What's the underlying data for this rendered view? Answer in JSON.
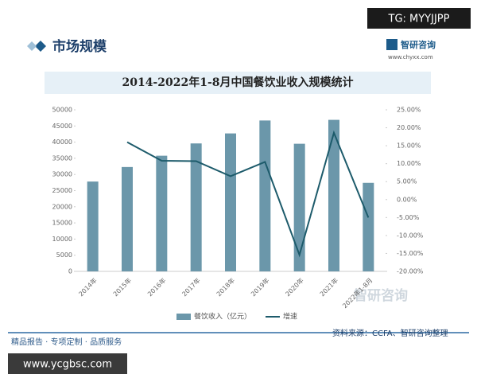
{
  "header": {
    "section": "市场规模",
    "brand": "智研咨询",
    "site": "www.chyxx.com",
    "tag": "TG: MYYJJPP"
  },
  "footer": {
    "slogan": "精品报告 · 专项定制 · 品质服务",
    "source": "资料来源：CCFA、智研咨询整理",
    "site": "www.ycgbsc.com",
    "watermark": "智研咨询"
  },
  "chart_data": {
    "type": "bar-line",
    "title": "2014-2022年1-8月中国餐饮业收入规模统计",
    "categories": [
      "2014年",
      "2015年",
      "2016年",
      "2017年",
      "2018年",
      "2019年",
      "2020年",
      "2021年",
      "2022年1-8月"
    ],
    "series": [
      {
        "name": "餐饮收入（亿元）",
        "type": "bar",
        "color": "#6b97aa",
        "values": [
          27800,
          32300,
          35800,
          39600,
          42700,
          46700,
          39500,
          46900,
          27400
        ]
      },
      {
        "name": "增速",
        "type": "line",
        "axis": "y2",
        "color": "#1d5b6b",
        "values": [
          null,
          16.0,
          10.8,
          10.7,
          6.5,
          10.5,
          -15.4,
          18.6,
          -5.0
        ]
      }
    ],
    "ylim": [
      0,
      50000
    ],
    "yticks": [
      0,
      5000,
      10000,
      15000,
      20000,
      25000,
      30000,
      35000,
      40000,
      45000,
      50000
    ],
    "y2lim": [
      -20,
      25
    ],
    "y2ticks": [
      {
        "value": -20,
        "label": "-20.00%"
      },
      {
        "value": -15,
        "label": "-15.00%"
      },
      {
        "value": -10,
        "label": "-10.00%"
      },
      {
        "value": -5,
        "label": "-5.00%"
      },
      {
        "value": 0,
        "label": "0.00%"
      },
      {
        "value": 5,
        "label": "5.00%"
      },
      {
        "value": 10,
        "label": "10.00%"
      },
      {
        "value": 15,
        "label": "15.00%"
      },
      {
        "value": 20,
        "label": "20.00%"
      },
      {
        "value": 25,
        "label": "25.00%"
      }
    ],
    "grid": false
  }
}
